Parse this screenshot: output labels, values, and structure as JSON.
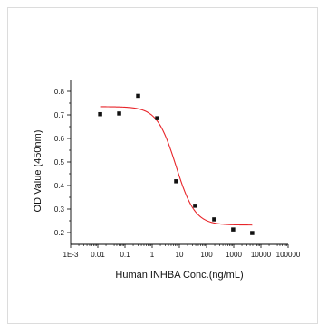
{
  "chart_data": {
    "type": "scatter",
    "xlabel": "Human INHBA Conc.(ng/mL)",
    "ylabel": "OD Value (450nm)",
    "x_scale": "log",
    "xlim": [
      0.001,
      100000
    ],
    "ylim": [
      0.15,
      0.85
    ],
    "x_tick_labels": [
      "1E-3",
      "0.01",
      "0.1",
      "1",
      "10",
      "100",
      "1000",
      "10000",
      "100000"
    ],
    "x_tick_values": [
      0.001,
      0.01,
      0.1,
      1,
      10,
      100,
      1000,
      10000,
      100000
    ],
    "y_tick_labels": [
      "0.2",
      "0.3",
      "0.4",
      "0.5",
      "0.6",
      "0.7",
      "0.8"
    ],
    "y_tick_values": [
      0.2,
      0.3,
      0.4,
      0.5,
      0.6,
      0.7,
      0.8
    ],
    "points": [
      {
        "x": 0.0122,
        "y": 0.703
      },
      {
        "x": 0.061,
        "y": 0.706
      },
      {
        "x": 0.305,
        "y": 0.781
      },
      {
        "x": 1.53,
        "y": 0.686
      },
      {
        "x": 7.63,
        "y": 0.418
      },
      {
        "x": 38.1,
        "y": 0.314
      },
      {
        "x": 191,
        "y": 0.256
      },
      {
        "x": 954,
        "y": 0.213
      },
      {
        "x": 4770,
        "y": 0.198
      }
    ],
    "fit": {
      "model": "4PL",
      "top": 0.735,
      "bottom": 0.232,
      "ec50": 7.5,
      "hill": 1.25,
      "x_range": [
        0.0122,
        4770
      ]
    },
    "grid": false,
    "colors": {
      "points": "#111111",
      "curve": "#e8252a",
      "axes": "#000000"
    }
  }
}
